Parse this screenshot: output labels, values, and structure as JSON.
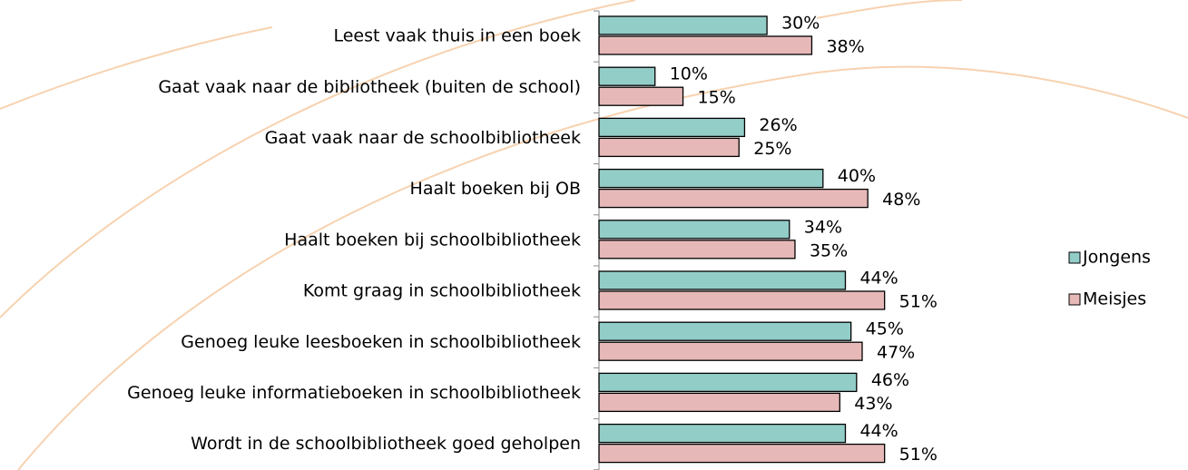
{
  "chart_data": {
    "type": "hbar",
    "categories": [
      "Leest vaak thuis in een boek",
      "Gaat vaak naar de bibliotheek (buiten de school)",
      "Gaat vaak naar de schoolbibliotheek",
      "Haalt boeken bij OB",
      "Haalt boeken bij schoolbibliotheek",
      "Komt graag in schoolbibliotheek",
      "Genoeg leuke leesboeken in schoolbibliotheek",
      "Genoeg leuke informatieboeken in schoolbibliotheek",
      "Wordt in de schoolbibliotheek goed geholpen"
    ],
    "series": [
      {
        "name": "Jongens",
        "color": "#93cdc8",
        "values": [
          30,
          10,
          26,
          40,
          34,
          44,
          45,
          46,
          44
        ],
        "value_labels": [
          "30%",
          "10%",
          "26%",
          "40%",
          "34%",
          "44%",
          "45%",
          "46%",
          "44%"
        ]
      },
      {
        "name": "Meisjes",
        "color": "#e6b9b8",
        "values": [
          38,
          15,
          25,
          48,
          35,
          51,
          47,
          43,
          51
        ],
        "value_labels": [
          "38%",
          "15%",
          "25%",
          "48%",
          "35%",
          "51%",
          "47%",
          "43%",
          "51%"
        ]
      }
    ],
    "xlim": [
      0,
      100
    ]
  }
}
